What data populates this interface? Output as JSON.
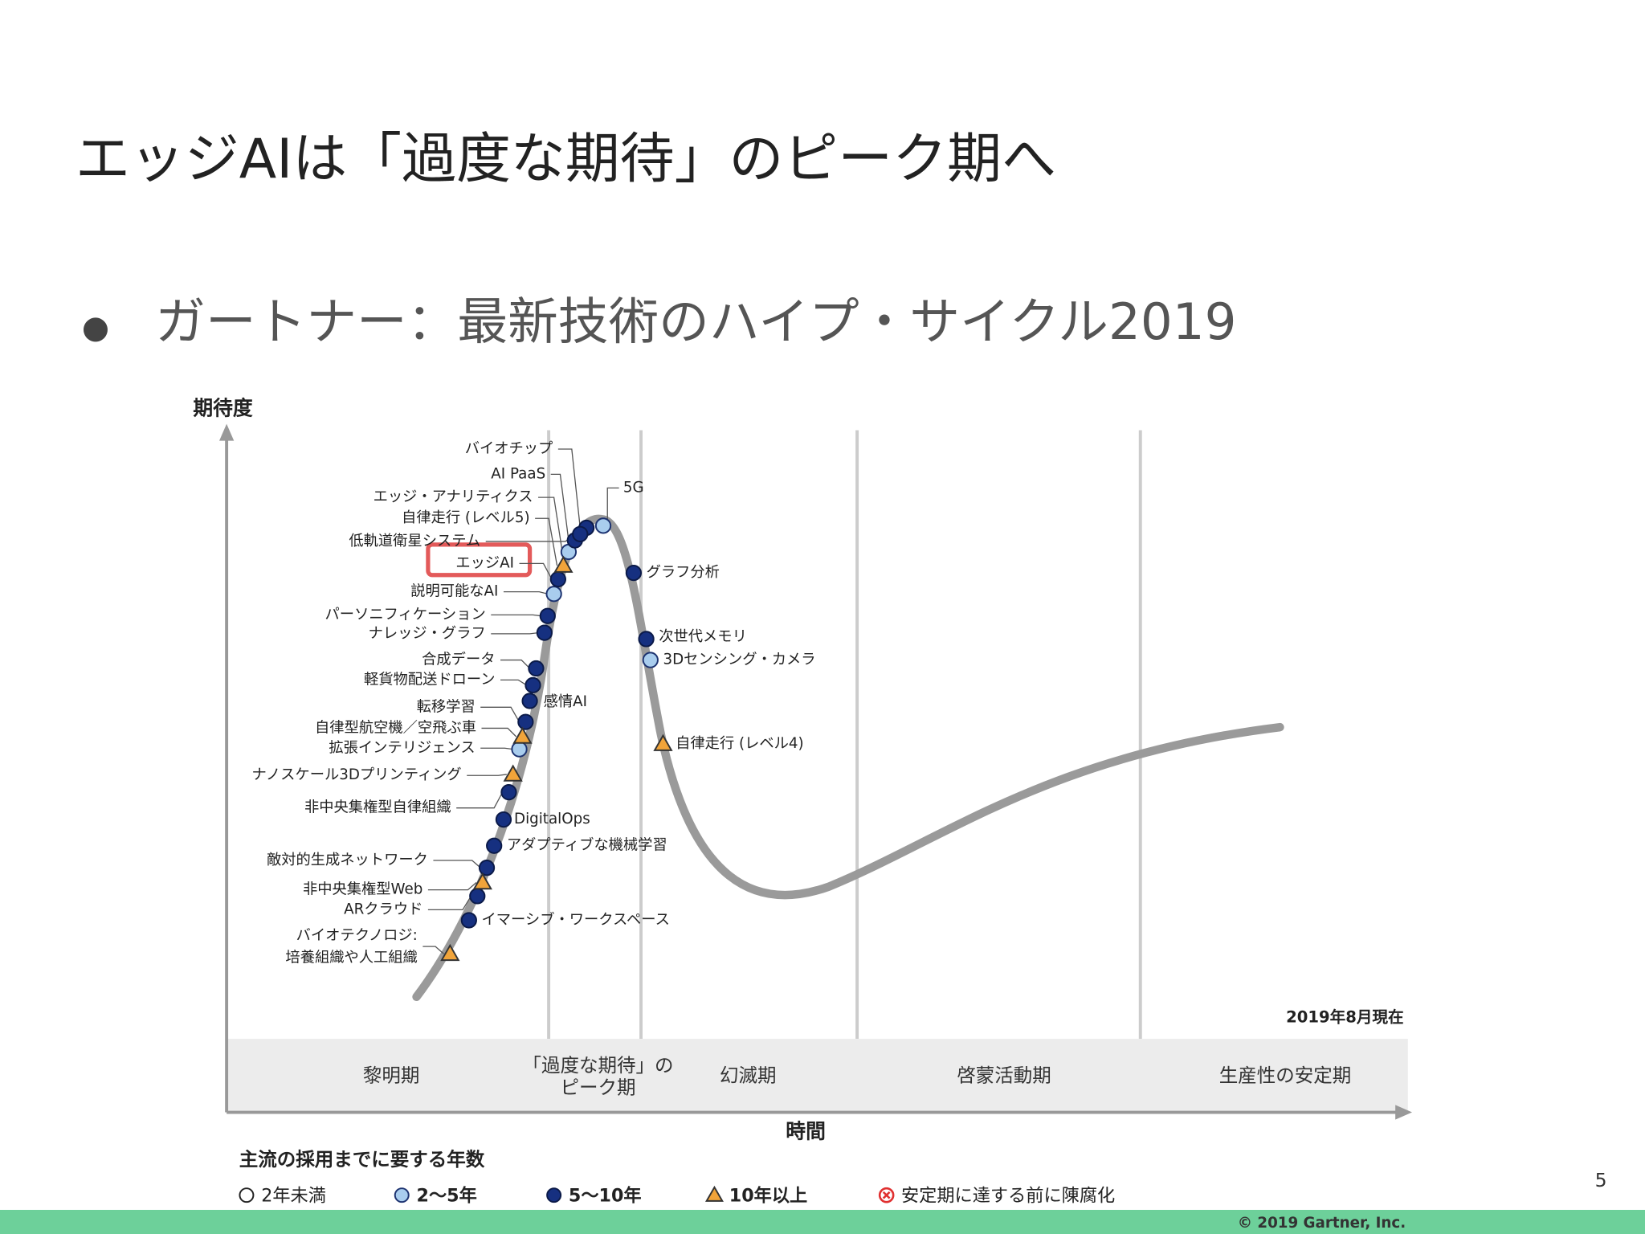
{
  "title": "エッジAIは「過度な期待」のピーク期へ",
  "bullet": "ガートナー：最新技術のハイプ・サイクル2019",
  "chart": {
    "y_axis_label": "期待度",
    "x_axis_label": "時間",
    "as_of": "2019年8月現在",
    "phases": [
      "黎明期",
      [
        "「過度な期待」の",
        "ピーク期"
      ],
      "幻滅期",
      "啓蒙活動期",
      "生産性の安定期"
    ]
  },
  "adoption_legend": {
    "title": "主流の採用までに要する年数",
    "classes": [
      {
        "label": "2年未満"
      },
      {
        "label": "2～5年",
        "technologies": [
          "エッジ・アナリティクス",
          "説明可能なAI",
          "拡張インテリジェンス",
          "5G",
          "3Dセンシング・カメラ"
        ]
      },
      {
        "label": "5～10年",
        "technologies": [
          "バイオチップ",
          "AI PaaS",
          "低軌道衛星システム",
          "エッジAI",
          "パーソニフィケーション",
          "ナレッジ・グラフ",
          "合成データ",
          "軽貨物配送ドローン",
          "感情AI",
          "転移学習",
          "非中央集権型自律組織",
          "DigitalOps",
          "アダプティブな機械学習",
          "敵対的生成ネットワーク",
          "ARクラウド",
          "イマーシブ・ワークスペース",
          "グラフ分析",
          "次世代メモリ"
        ]
      },
      {
        "label": "10年以上",
        "technologies": [
          "自律走行 (レベル5)",
          "自律型航空機／空飛ぶ車",
          "ナノスケール3Dプリンティング",
          "非中央集権型Web",
          [
            "バイオテクノロジ:",
            "培養組織や人工組織"
          ],
          "自律走行 (レベル4)"
        ]
      },
      {
        "label": "安定期に達する前に陳腐化"
      }
    ]
  },
  "page_number": "5",
  "copyright": "© 2019 Gartner, Inc."
}
